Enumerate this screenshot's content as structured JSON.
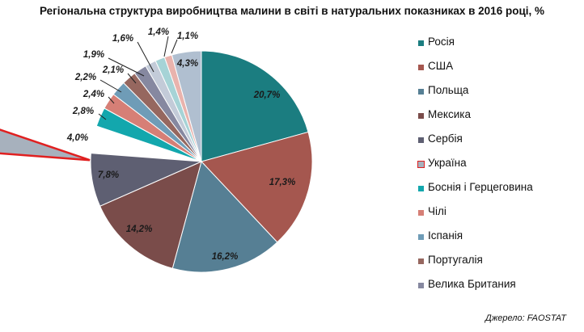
{
  "chart_data": {
    "type": "pie",
    "title": "Регіональна структура виробництва малини в світі в натуральних показниках в 2016 році, %",
    "categories": [
      "Росія",
      "США",
      "Польща",
      "Мексика",
      "Сербія",
      "Україна",
      "Боснія і Герцеговина",
      "Чілі",
      "Іспанія",
      "Португалія",
      "Велика Британия",
      "",
      "",
      "",
      ""
    ],
    "values": [
      20.7,
      17.3,
      16.2,
      14.2,
      7.8,
      4.0,
      2.8,
      2.4,
      2.2,
      2.1,
      1.9,
      1.6,
      1.4,
      1.1,
      4.3
    ],
    "data_labels": [
      "20,7%",
      "17,3%",
      "16,2%",
      "14,2%",
      "7,8%",
      "4,0%",
      "2,8%",
      "2,4%",
      "2,2%",
      "2,1%",
      "1,9%",
      "1,6%",
      "1,4%",
      "1,1%",
      "4,3%"
    ],
    "colors": [
      "#1b7d80",
      "#a5574f",
      "#567f94",
      "#7a4c4a",
      "#5e5f72",
      "#a7b1bd",
      "#13a7ad",
      "#d67f76",
      "#6f9cb7",
      "#96675f",
      "#8688a0",
      "#c3cbd8",
      "#a6d3d6",
      "#e9b3ad",
      "#b0bfd0"
    ],
    "highlighted": "Україна",
    "highlight_color": "#e02020",
    "legend_position": "right",
    "source": "Джерело: FAOSTAT"
  }
}
